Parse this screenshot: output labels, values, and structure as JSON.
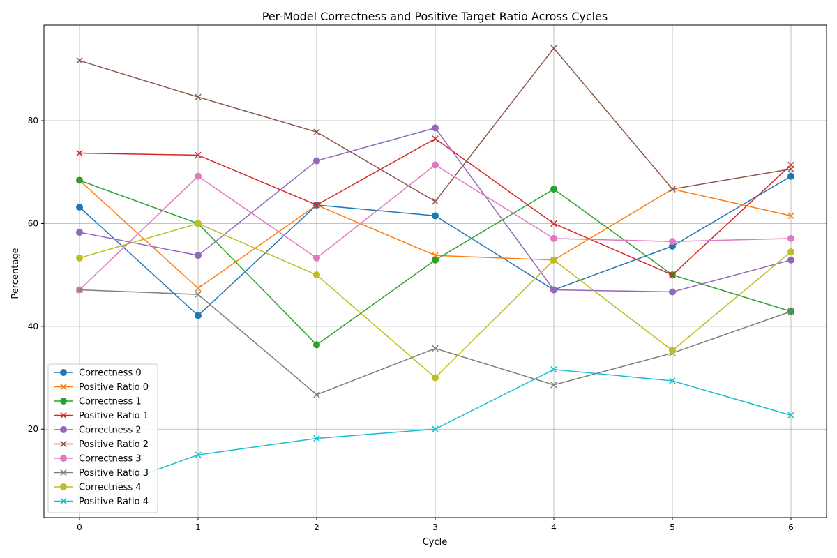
{
  "chart_data": {
    "type": "line",
    "title": "Per-Model Correctness and Positive Target Ratio Across Cycles",
    "xlabel": "Cycle",
    "ylabel": "Percentage",
    "x": [
      0,
      1,
      2,
      3,
      4,
      5,
      6
    ],
    "xlim": [
      -0.3,
      6.3
    ],
    "ylim": [
      2.8,
      98.6
    ],
    "yticks": [
      20,
      40,
      60,
      80
    ],
    "grid": true,
    "legend_position": "lower-left",
    "series": [
      {
        "name": "Correctness 0",
        "marker": "circle",
        "color": "#1f77b4",
        "values": [
          63.2,
          42.1,
          63.6,
          61.5,
          47.1,
          55.6,
          69.2
        ]
      },
      {
        "name": "Positive Ratio 0",
        "marker": "x",
        "color": "#ff7f0e",
        "values": [
          68.4,
          47.4,
          63.6,
          53.8,
          52.9,
          66.7,
          61.5
        ]
      },
      {
        "name": "Correctness 1",
        "marker": "circle",
        "color": "#2ca02c",
        "values": [
          68.4,
          60.0,
          36.4,
          52.9,
          66.7,
          50.0,
          42.9
        ]
      },
      {
        "name": "Positive Ratio 1",
        "marker": "x",
        "color": "#d62728",
        "values": [
          73.7,
          73.3,
          63.6,
          76.5,
          60.0,
          50.0,
          71.4
        ]
      },
      {
        "name": "Correctness 2",
        "marker": "circle",
        "color": "#9467bd",
        "values": [
          58.3,
          53.8,
          72.2,
          78.6,
          47.1,
          46.7,
          52.9
        ]
      },
      {
        "name": "Positive Ratio 2",
        "marker": "x",
        "color": "#8c564b",
        "values": [
          91.7,
          84.6,
          77.8,
          64.3,
          94.1,
          66.7,
          70.6
        ]
      },
      {
        "name": "Correctness 3",
        "marker": "circle",
        "color": "#e377c2",
        "values": [
          47.1,
          69.2,
          53.3,
          71.4,
          57.1,
          56.5,
          57.1
        ]
      },
      {
        "name": "Positive Ratio 3",
        "marker": "x",
        "color": "#7f7f7f",
        "values": [
          47.1,
          46.2,
          26.7,
          35.7,
          28.6,
          34.8,
          42.9
        ]
      },
      {
        "name": "Correctness 4",
        "marker": "circle",
        "color": "#bcbd22",
        "values": [
          53.3,
          60.0,
          50.0,
          30.0,
          52.9,
          35.3,
          54.5
        ]
      },
      {
        "name": "Positive Ratio 4",
        "marker": "x",
        "color": "#17becf",
        "values": [
          6.7,
          15.0,
          18.2,
          20.0,
          31.6,
          29.4,
          22.7
        ]
      }
    ]
  }
}
